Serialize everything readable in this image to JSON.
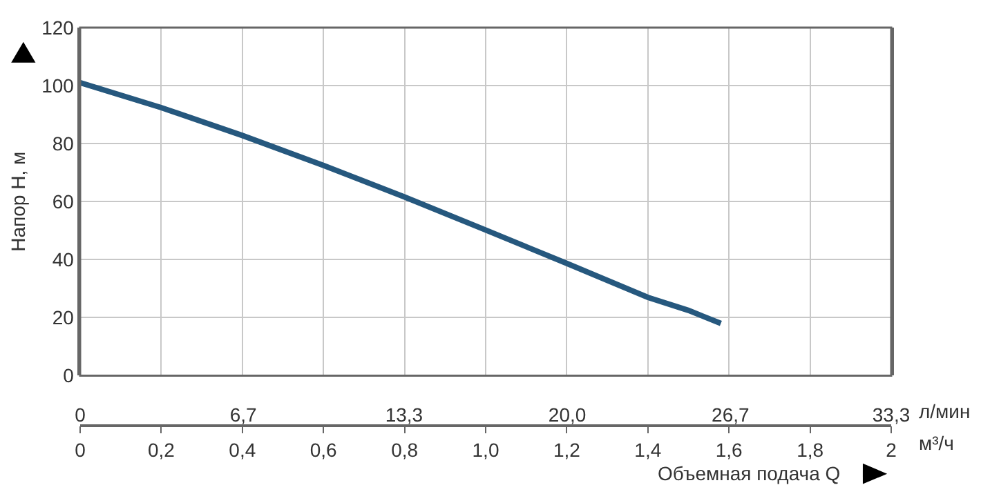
{
  "chart_data": {
    "type": "line",
    "xlabel": "Объемная подача Q",
    "ylabel": "Напор H, м",
    "x2label": "л/мин",
    "annotations": [
      "м³/ч"
    ],
    "x": [
      0,
      0.2,
      0.4,
      0.6,
      0.8,
      1.0,
      1.2,
      1.4,
      1.5,
      1.58
    ],
    "series": [
      {
        "color": "#26587e",
        "values": [
          101,
          92.4,
          82.8,
          72.5,
          61.6,
          50.2,
          38.7,
          27,
          22.5,
          18
        ]
      }
    ],
    "xlim": [
      0,
      2
    ],
    "ylim": [
      0,
      120
    ],
    "xticks": [
      0,
      {
        "value": 0.2,
        "label": "0,2"
      },
      {
        "value": 0.4,
        "label": "0,4"
      },
      {
        "value": 0.6,
        "label": "0,6"
      },
      {
        "value": 0.8,
        "label": "0,8"
      },
      {
        "value": 1.0,
        "label": "1,0"
      },
      {
        "value": 1.2,
        "label": "1,2"
      },
      {
        "value": 1.4,
        "label": "1,4"
      },
      {
        "value": 1.6,
        "label": "1,6"
      },
      {
        "value": 1.8,
        "label": "1,8"
      },
      2
    ],
    "yticks": [
      0,
      20,
      40,
      60,
      80,
      100,
      120
    ],
    "x2lim": [
      0,
      33.3
    ],
    "x2ticks": [
      0,
      {
        "value": 6.7,
        "label": "6,7"
      },
      {
        "value": 13.3,
        "label": "13,3"
      },
      {
        "value": 20.0,
        "label": "20,0"
      },
      {
        "value": 26.7,
        "label": "26,7"
      },
      {
        "value": 33.3,
        "label": "33,3"
      }
    ],
    "grid": true,
    "marker": "none",
    "line_style": "solid"
  }
}
